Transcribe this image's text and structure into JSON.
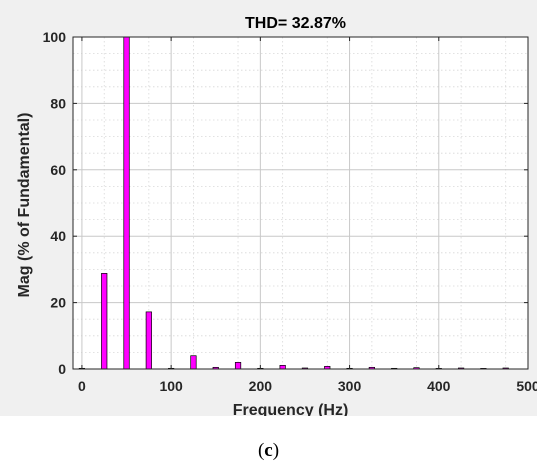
{
  "caption": {
    "prefix": "(",
    "letter": "c",
    "suffix": ")"
  },
  "chart_data": {
    "type": "bar",
    "title": "THD= 32.87%",
    "xlabel": "Frequency (Hz)",
    "ylabel": "Mag (% of Fundamental)",
    "xlim": [
      -10,
      500
    ],
    "ylim": [
      0,
      100
    ],
    "xticks": [
      0,
      100,
      200,
      300,
      400,
      500
    ],
    "yticks": [
      0,
      20,
      40,
      60,
      80,
      100
    ],
    "grid": true,
    "minor_grid": true,
    "bar_color": "#ff00ff",
    "bar_edge_color": "#000000",
    "x": [
      0,
      25,
      50,
      75,
      100,
      125,
      150,
      175,
      200,
      225,
      250,
      275,
      300,
      325,
      350,
      375,
      400,
      425,
      450,
      475
    ],
    "values": [
      0.2,
      28.8,
      100,
      17.2,
      0.2,
      4.0,
      0.5,
      2.0,
      0.2,
      1.1,
      0.3,
      0.8,
      0.2,
      0.5,
      0.2,
      0.4,
      0.1,
      0.3,
      0.1,
      0.3
    ]
  }
}
